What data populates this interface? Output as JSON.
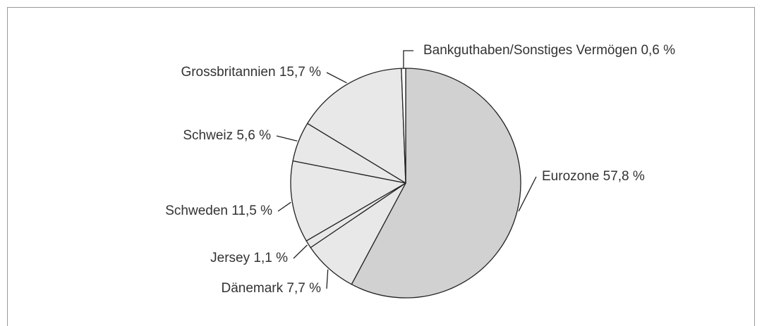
{
  "chart_data": {
    "type": "pie",
    "categories": [
      "Eurozone",
      "Dänemark",
      "Jersey",
      "Schweden",
      "Schweiz",
      "Grossbritannien",
      "Bankguthaben/Sonstiges Vermögen"
    ],
    "values": [
      57.8,
      7.7,
      1.1,
      11.5,
      5.6,
      15.7,
      0.6
    ],
    "value_labels": [
      "57,8 %",
      "7,7 %",
      "1,1 %",
      "11,5 %",
      "5,6 %",
      "15,7 %",
      "0,6 %"
    ],
    "colors": [
      "#d1d1d1",
      "#e8e8e8",
      "#e8e8e8",
      "#e8e8e8",
      "#e8e8e8",
      "#e8e8e8",
      "#ffffff"
    ]
  }
}
